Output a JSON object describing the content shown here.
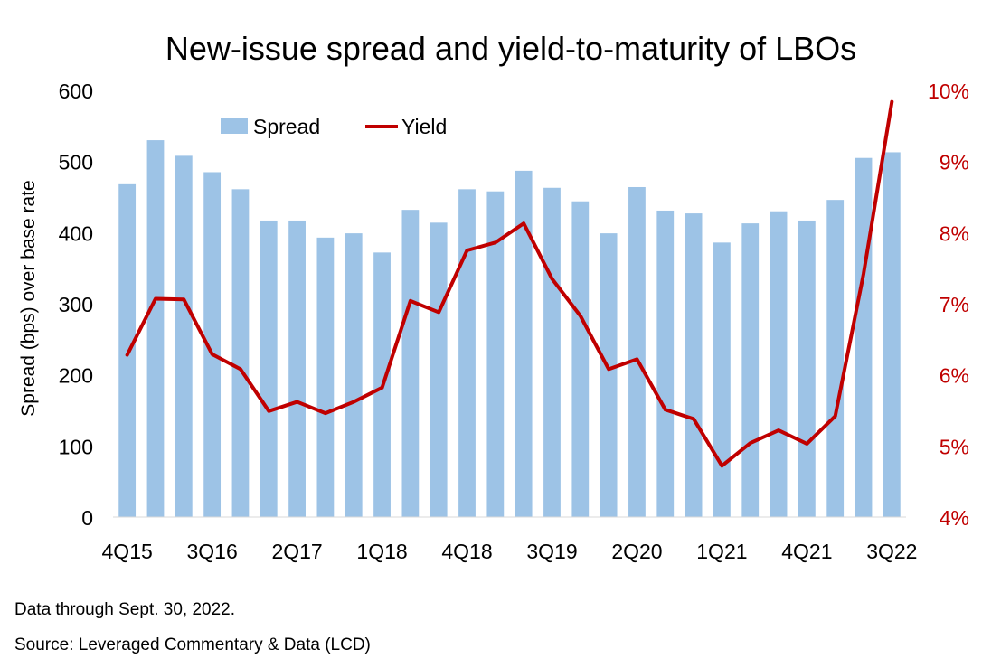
{
  "chart_data": {
    "type": "bar+line",
    "title": "New-issue spread and yield-to-maturity of LBOs",
    "ylabel": "Spread (bps) over base rate",
    "ylim": [
      0,
      600
    ],
    "yticks": [
      "0",
      "100",
      "200",
      "300",
      "400",
      "500",
      "600"
    ],
    "y2lim": [
      4,
      10
    ],
    "y2ticks": [
      "4%",
      "5%",
      "6%",
      "7%",
      "8%",
      "9%",
      "10%"
    ],
    "categories": [
      "4Q15",
      "1Q16",
      "2Q16",
      "3Q16",
      "4Q16",
      "1Q17",
      "2Q17",
      "3Q17",
      "4Q17",
      "1Q18",
      "2Q18",
      "3Q18",
      "4Q18",
      "1Q19",
      "2Q19",
      "3Q19",
      "4Q19",
      "1Q20",
      "2Q20",
      "3Q20",
      "4Q20",
      "1Q21",
      "2Q21",
      "3Q21",
      "4Q21",
      "1Q22",
      "2Q22",
      "3Q22"
    ],
    "xtick_labels": [
      "4Q15",
      "3Q16",
      "2Q17",
      "1Q18",
      "4Q18",
      "3Q19",
      "2Q20",
      "1Q21",
      "4Q21",
      "3Q22"
    ],
    "legend_position": "top-left",
    "grid": false,
    "series": [
      {
        "name": "Spread",
        "type": "bar",
        "axis": "left",
        "color": "#9dc3e6",
        "values": [
          468,
          530,
          508,
          485,
          461,
          417,
          417,
          393,
          399,
          372,
          432,
          414,
          461,
          458,
          487,
          463,
          444,
          399,
          464,
          431,
          427,
          386,
          413,
          430,
          417,
          446,
          505,
          513
        ]
      },
      {
        "name": "Yield",
        "type": "line",
        "axis": "right",
        "color": "#c00000",
        "values": [
          6.28,
          7.07,
          7.06,
          6.29,
          6.08,
          5.49,
          5.62,
          5.46,
          5.62,
          5.82,
          7.04,
          6.88,
          7.75,
          7.86,
          8.13,
          7.35,
          6.83,
          6.08,
          6.22,
          5.51,
          5.38,
          4.72,
          5.04,
          5.22,
          5.03,
          5.42,
          7.42,
          9.84
        ]
      }
    ],
    "axis_color": "#c00000"
  },
  "notes": {
    "line1": "Data through Sept. 30, 2022.",
    "line2": "Source: Leveraged Commentary & Data (LCD)"
  }
}
